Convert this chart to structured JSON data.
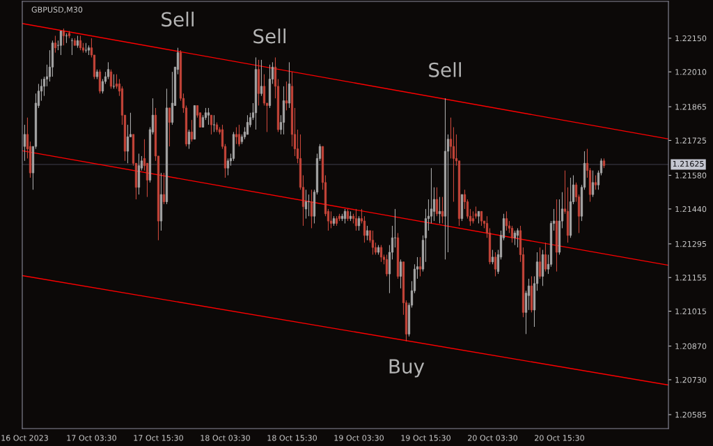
{
  "chart_data": {
    "type": "candlestick",
    "title": "GBPUSD,M30",
    "colors": [
      "#a8a8a8",
      "#c8463a",
      "#c8463a",
      "#a8a8a8",
      "#a8a8a8",
      "#a8a8a8",
      "#a8a8a8",
      "#a8a8a8",
      "#a8a8a8",
      "#a8a8a8",
      "#a8a8a8",
      "#c8463a",
      "#a8a8a8",
      "#a8a8a8",
      "#c8463a",
      "#a8a8a8",
      "#c8463a",
      "#a8a8a8",
      "#c8463a",
      "#a8a8a8",
      "#c8463a",
      "#c8463a",
      "#a8a8a8",
      "#a8a8a8",
      "#c8463a",
      "#c8463a",
      "#a8a8a8",
      "#c8463a",
      "#a8a8a8",
      "#a8a8a8",
      "#a8a8a8",
      "#c8463a",
      "#a8a8a8",
      "#c8463a",
      "#c8463a",
      "#c8463a",
      "#c8463a",
      "#a8a8a8",
      "#a8a8a8",
      "#c8463a",
      "#c8463a",
      "#a8a8a8",
      "#a8a8a8",
      "#c8463a",
      "#c8463a",
      "#a8a8a8",
      "#a8a8a8",
      "#c8463a",
      "#c8463a",
      "#a8a8a8",
      "#c8463a",
      "#a8a8a8",
      "#c8463a",
      "#a8a8a8",
      "#a8a8a8",
      "#a8a8a8",
      "#c8463a",
      "#c8463a",
      "#c8463a",
      "#a8a8a8",
      "#c8463a",
      "#a8a8a8",
      "#c8463a",
      "#c8463a",
      "#a8a8a8",
      "#a8a8a8",
      "#a8a8a8",
      "#c8463a",
      "#a8a8a8",
      "#c8463a",
      "#c8463a",
      "#c8463a",
      "#c8463a",
      "#a8a8a8",
      "#a8a8a8",
      "#a8a8a8",
      "#c8463a",
      "#c8463a",
      "#a8a8a8",
      "#a8a8a8",
      "#a8a8a8",
      "#a8a8a8",
      "#a8a8a8",
      "#a8a8a8",
      "#c8463a",
      "#a8a8a8",
      "#c8463a",
      "#c8463a",
      "#a8a8a8",
      "#a8a8a8",
      "#c8463a",
      "#c8463a",
      "#a8a8a8",
      "#a8a8a8",
      "#c8463a",
      "#a8a8a8",
      "#c8463a",
      "#c8463a",
      "#c8463a",
      "#c8463a",
      "#c8463a",
      "#a8a8a8",
      "#a8a8a8",
      "#c8463a",
      "#a8a8a8",
      "#a8a8a8",
      "#a8a8a8",
      "#c8463a",
      "#c8463a",
      "#c8463a",
      "#c8463a",
      "#a8a8a8",
      "#c8463a",
      "#c8463a",
      "#a8a8a8",
      "#a8a8a8",
      "#c8463a",
      "#a8a8a8",
      "#c8463a",
      "#c8463a",
      "#a8a8a8",
      "#c8463a",
      "#c8463a",
      "#a8a8a8",
      "#c8463a",
      "#c8463a",
      "#c8463a",
      "#a8a8a8",
      "#c8463a",
      "#c8463a",
      "#c8463a",
      "#a8a8a8",
      "#a8a8a8",
      "#a8a8a8",
      "#c8463a",
      "#a8a8a8",
      "#c8463a",
      "#c8463a",
      "#a8a8a8",
      "#a8a8a8",
      "#a8a8a8",
      "#a8a8a8",
      "#c8463a",
      "#a8a8a8",
      "#a8a8a8",
      "#a8a8a8",
      "#a8a8a8",
      "#a8a8a8",
      "#c8463a",
      "#a8a8a8",
      "#c8463a",
      "#a8a8a8",
      "#a8a8a8",
      "#c8463a",
      "#c8463a",
      "#c8463a",
      "#c8463a",
      "#a8a8a8",
      "#c8463a",
      "#c8463a",
      "#c8463a",
      "#c8463a",
      "#c8463a",
      "#a8a8a8",
      "#c8463a",
      "#c8463a",
      "#c8463a",
      "#c8463a",
      "#a8a8a8",
      "#c8463a",
      "#a8a8a8",
      "#a8a8a8",
      "#a8a8a8",
      "#c8463a",
      "#c8463a",
      "#c8463a",
      "#a8a8a8",
      "#a8a8a8",
      "#c8463a",
      "#c8463a",
      "#a8a8a8",
      "#a8a8a8",
      "#c8463a",
      "#a8a8a8",
      "#a8a8a8",
      "#c8463a",
      "#a8a8a8",
      "#c8463a",
      "#a8a8a8",
      "#a8a8a8",
      "#a8a8a8",
      "#c8463a",
      "#a8a8a8",
      "#a8a8a8",
      "#c8463a",
      "#c8463a",
      "#a8a8a8",
      "#a8a8a8",
      "#c8463a",
      "#c8463a",
      "#a8a8a8",
      "#a8a8a8",
      "#c8463a",
      "#c8463a",
      "#a8a8a8",
      "#c8463a",
      "#a8a8a8",
      "#a8a8a8",
      "#c8463a"
    ],
    "x": [
      "2023-10-16T15:30",
      "2023-10-16T16:00",
      "2023-10-16T16:30",
      "2023-10-16T17:00",
      "2023-10-16T17:30",
      "2023-10-16T18:00",
      "2023-10-16T18:30",
      "2023-10-16T19:00",
      "2023-10-16T19:30",
      "2023-10-16T20:00",
      "2023-10-16T20:30",
      "2023-10-16T21:00",
      "2023-10-16T21:30",
      "2023-10-16T22:00",
      "2023-10-16T22:30",
      "2023-10-16T23:00",
      "2023-10-16T23:30",
      "2023-10-17T00:00",
      "2023-10-17T00:30",
      "2023-10-17T01:00",
      "2023-10-17T01:30",
      "2023-10-17T02:00",
      "2023-10-17T02:30",
      "2023-10-17T03:00",
      "2023-10-17T03:30",
      "2023-10-17T04:00",
      "2023-10-17T04:30",
      "2023-10-17T05:00",
      "2023-10-17T05:30",
      "2023-10-17T06:00",
      "2023-10-17T06:30",
      "2023-10-17T07:00",
      "2023-10-17T07:30",
      "2023-10-17T08:00",
      "2023-10-17T08:30",
      "2023-10-17T09:00",
      "2023-10-17T09:30",
      "2023-10-17T10:00",
      "2023-10-17T10:30",
      "2023-10-17T11:00",
      "2023-10-17T11:30",
      "2023-10-17T12:00",
      "2023-10-17T12:30",
      "2023-10-17T13:00",
      "2023-10-17T13:30",
      "2023-10-17T14:00",
      "2023-10-17T14:30",
      "2023-10-17T15:00",
      "2023-10-17T15:30",
      "2023-10-17T16:00",
      "2023-10-17T16:30",
      "2023-10-17T17:00",
      "2023-10-17T17:30",
      "2023-10-17T18:00",
      "2023-10-17T18:30",
      "2023-10-17T19:00",
      "2023-10-17T19:30",
      "2023-10-17T20:00",
      "2023-10-17T20:30",
      "2023-10-17T21:00",
      "2023-10-17T21:30",
      "2023-10-17T22:00",
      "2023-10-17T22:30",
      "2023-10-17T23:00",
      "2023-10-17T23:30",
      "2023-10-18T00:00",
      "2023-10-18T00:30",
      "2023-10-18T01:00",
      "2023-10-18T01:30",
      "2023-10-18T02:00",
      "2023-10-18T02:30",
      "2023-10-18T03:00",
      "2023-10-18T03:30",
      "2023-10-18T04:00",
      "2023-10-18T04:30",
      "2023-10-18T05:00",
      "2023-10-18T05:30",
      "2023-10-18T06:00",
      "2023-10-18T06:30",
      "2023-10-18T07:00",
      "2023-10-18T07:30",
      "2023-10-18T08:00",
      "2023-10-18T08:30",
      "2023-10-18T09:00",
      "2023-10-18T09:30",
      "2023-10-18T10:00",
      "2023-10-18T10:30",
      "2023-10-18T11:00",
      "2023-10-18T11:30",
      "2023-10-18T12:00",
      "2023-10-18T12:30",
      "2023-10-18T13:00",
      "2023-10-18T13:30",
      "2023-10-18T14:00",
      "2023-10-18T14:30",
      "2023-10-18T15:00",
      "2023-10-18T15:30",
      "2023-10-18T16:00",
      "2023-10-18T16:30",
      "2023-10-18T17:00",
      "2023-10-18T17:30",
      "2023-10-18T18:00",
      "2023-10-18T18:30",
      "2023-10-18T19:00",
      "2023-10-18T19:30",
      "2023-10-18T20:00",
      "2023-10-18T20:30",
      "2023-10-18T21:00",
      "2023-10-18T21:30",
      "2023-10-18T22:00",
      "2023-10-18T22:30",
      "2023-10-18T23:00",
      "2023-10-18T23:30",
      "2023-10-19T00:00",
      "2023-10-19T00:30",
      "2023-10-19T01:00",
      "2023-10-19T01:30",
      "2023-10-19T02:00",
      "2023-10-19T02:30",
      "2023-10-19T03:00",
      "2023-10-19T03:30",
      "2023-10-19T04:00",
      "2023-10-19T04:30",
      "2023-10-19T05:00",
      "2023-10-19T05:30",
      "2023-10-19T06:00",
      "2023-10-19T06:30",
      "2023-10-19T07:00",
      "2023-10-19T07:30",
      "2023-10-19T08:00",
      "2023-10-19T08:30",
      "2023-10-19T09:00",
      "2023-10-19T09:30",
      "2023-10-19T10:00",
      "2023-10-19T10:30",
      "2023-10-19T11:00",
      "2023-10-19T11:30",
      "2023-10-19T12:00",
      "2023-10-19T12:30",
      "2023-10-19T13:00",
      "2023-10-19T13:30",
      "2023-10-19T14:00",
      "2023-10-19T14:30",
      "2023-10-19T15:00",
      "2023-10-19T15:30",
      "2023-10-19T16:00",
      "2023-10-19T16:30",
      "2023-10-19T17:00",
      "2023-10-19T17:30",
      "2023-10-19T18:00",
      "2023-10-19T18:30",
      "2023-10-19T19:00",
      "2023-10-19T19:30",
      "2023-10-19T20:00",
      "2023-10-19T20:30",
      "2023-10-19T21:00",
      "2023-10-19T21:30",
      "2023-10-19T22:00",
      "2023-10-19T22:30",
      "2023-10-19T23:00",
      "2023-10-19T23:30",
      "2023-10-20T00:00",
      "2023-10-20T00:30",
      "2023-10-20T01:00",
      "2023-10-20T01:30",
      "2023-10-20T02:00",
      "2023-10-20T02:30",
      "2023-10-20T03:00",
      "2023-10-20T03:30",
      "2023-10-20T04:00",
      "2023-10-20T04:30",
      "2023-10-20T05:00",
      "2023-10-20T05:30",
      "2023-10-20T06:00",
      "2023-10-20T06:30",
      "2023-10-20T07:00",
      "2023-10-20T07:30",
      "2023-10-20T08:00",
      "2023-10-20T08:30",
      "2023-10-20T09:00",
      "2023-10-20T09:30",
      "2023-10-20T10:00",
      "2023-10-20T10:30",
      "2023-10-20T11:00",
      "2023-10-20T11:30",
      "2023-10-20T12:00",
      "2023-10-20T12:30",
      "2023-10-20T13:00",
      "2023-10-20T13:30",
      "2023-10-20T14:00",
      "2023-10-20T14:30",
      "2023-10-20T15:00",
      "2023-10-20T15:30",
      "2023-10-20T16:00",
      "2023-10-20T16:30",
      "2023-10-20T17:00",
      "2023-10-20T17:30",
      "2023-10-20T18:00",
      "2023-10-20T18:30",
      "2023-10-20T19:00",
      "2023-10-20T19:30",
      "2023-10-20T20:00",
      "2023-10-20T20:30",
      "2023-10-20T21:00",
      "2023-10-20T21:30",
      "2023-10-20T22:00",
      "2023-10-20T22:30",
      "2023-10-20T23:00",
      "2023-10-20T23:30"
    ],
    "ohlc": [
      [
        1.217,
        1.2179,
        1.2164,
        1.2175
      ],
      [
        1.2175,
        1.2182,
        1.2165,
        1.2169
      ],
      [
        1.217,
        1.2172,
        1.2157,
        1.2159
      ],
      [
        1.2159,
        1.217,
        1.2152,
        1.217
      ],
      [
        1.217,
        1.2192,
        1.2169,
        1.2188
      ],
      [
        1.2187,
        1.2196,
        1.2186,
        1.2193
      ],
      [
        1.2193,
        1.2198,
        1.2189,
        1.2195
      ],
      [
        1.2195,
        1.2199,
        1.2191,
        1.2198
      ],
      [
        1.2198,
        1.2204,
        1.2195,
        1.2199
      ],
      [
        1.2199,
        1.221,
        1.2197,
        1.2203
      ],
      [
        1.2203,
        1.2214,
        1.2199,
        1.2213
      ],
      [
        1.2213,
        1.2216,
        1.2209,
        1.2211
      ],
      [
        1.2212,
        1.2214,
        1.221,
        1.2212
      ],
      [
        1.2212,
        1.2218,
        1.2208,
        1.2218
      ],
      [
        1.2218,
        1.2219,
        1.2212,
        1.2216
      ],
      [
        1.2216,
        1.2217,
        1.2213,
        1.2216
      ],
      [
        1.2217,
        1.2218,
        1.2215,
        1.2216
      ],
      [
        1.2214,
        1.2215,
        1.2208,
        1.2214
      ],
      [
        1.2214,
        1.2215,
        1.2212,
        1.2212
      ],
      [
        1.2212,
        1.2216,
        1.2211,
        1.2214
      ],
      [
        1.2214,
        1.2216,
        1.221,
        1.2211
      ],
      [
        1.2211,
        1.2213,
        1.2209,
        1.221
      ],
      [
        1.221,
        1.2213,
        1.2209,
        1.221
      ],
      [
        1.221,
        1.2212,
        1.2208,
        1.2211
      ],
      [
        1.2211,
        1.2215,
        1.2207,
        1.2208
      ],
      [
        1.2208,
        1.2208,
        1.2198,
        1.2199
      ],
      [
        1.2199,
        1.2202,
        1.2198,
        1.2201
      ],
      [
        1.2201,
        1.2202,
        1.2192,
        1.2193
      ],
      [
        1.2193,
        1.2198,
        1.2192,
        1.2197
      ],
      [
        1.2197,
        1.2201,
        1.2196,
        1.2199
      ],
      [
        1.2199,
        1.2205,
        1.2198,
        1.2202
      ],
      [
        1.2201,
        1.2202,
        1.2194,
        1.2195
      ],
      [
        1.2195,
        1.22,
        1.2194,
        1.2195
      ],
      [
        1.2196,
        1.22,
        1.2194,
        1.2195
      ],
      [
        1.2196,
        1.2198,
        1.2191,
        1.2193
      ],
      [
        1.2194,
        1.2195,
        1.2179,
        1.2183
      ],
      [
        1.2183,
        1.2183,
        1.2164,
        1.2168
      ],
      [
        1.2168,
        1.2179,
        1.2163,
        1.2174
      ],
      [
        1.2174,
        1.2184,
        1.2174,
        1.2175
      ],
      [
        1.2175,
        1.2175,
        1.2162,
        1.2163
      ],
      [
        1.2163,
        1.2163,
        1.2148,
        1.2153
      ],
      [
        1.2153,
        1.2167,
        1.215,
        1.2162
      ],
      [
        1.2161,
        1.2166,
        1.216,
        1.2164
      ],
      [
        1.2165,
        1.2173,
        1.216,
        1.2162
      ],
      [
        1.2163,
        1.2163,
        1.2149,
        1.2156
      ],
      [
        1.2156,
        1.2178,
        1.2155,
        1.2177
      ],
      [
        1.2176,
        1.219,
        1.2175,
        1.2183
      ],
      [
        1.2183,
        1.2186,
        1.2164,
        1.2166
      ],
      [
        1.2166,
        1.2166,
        1.2131,
        1.2139
      ],
      [
        1.2139,
        1.2159,
        1.2135,
        1.215
      ],
      [
        1.215,
        1.2159,
        1.2146,
        1.2147
      ],
      [
        1.2147,
        1.2194,
        1.2146,
        1.2186
      ],
      [
        1.2186,
        1.2186,
        1.217,
        1.218
      ],
      [
        1.218,
        1.2201,
        1.2179,
        1.2188
      ],
      [
        1.2187,
        1.2203,
        1.2187,
        1.2203
      ],
      [
        1.2202,
        1.2211,
        1.22,
        1.2209
      ],
      [
        1.2209,
        1.221,
        1.2189,
        1.219
      ],
      [
        1.219,
        1.2192,
        1.2184,
        1.2186
      ],
      [
        1.2186,
        1.2187,
        1.217,
        1.2171
      ],
      [
        1.2171,
        1.2177,
        1.2169,
        1.2176
      ],
      [
        1.2176,
        1.2181,
        1.2172,
        1.2173
      ],
      [
        1.2173,
        1.2187,
        1.2173,
        1.2187
      ],
      [
        1.2187,
        1.2187,
        1.2182,
        1.2183
      ],
      [
        1.2184,
        1.2184,
        1.2178,
        1.2178
      ],
      [
        1.2178,
        1.2183,
        1.2178,
        1.2182
      ],
      [
        1.2182,
        1.2186,
        1.2181,
        1.2184
      ],
      [
        1.2183,
        1.2186,
        1.2179,
        1.2184
      ],
      [
        1.2183,
        1.2183,
        1.2175,
        1.2179
      ],
      [
        1.2179,
        1.2183,
        1.2176,
        1.2179
      ],
      [
        1.2179,
        1.218,
        1.2176,
        1.2177
      ],
      [
        1.2177,
        1.2178,
        1.2175,
        1.2176
      ],
      [
        1.2177,
        1.2179,
        1.2169,
        1.217
      ],
      [
        1.217,
        1.2171,
        1.2157,
        1.2161
      ],
      [
        1.2161,
        1.2165,
        1.2158,
        1.2164
      ],
      [
        1.2164,
        1.2167,
        1.2162,
        1.2165
      ],
      [
        1.2165,
        1.2176,
        1.2164,
        1.2175
      ],
      [
        1.2175,
        1.2178,
        1.2171,
        1.2174
      ],
      [
        1.2175,
        1.2179,
        1.217,
        1.2171
      ],
      [
        1.2172,
        1.2175,
        1.2171,
        1.2174
      ],
      [
        1.2174,
        1.2178,
        1.2173,
        1.2176
      ],
      [
        1.2175,
        1.2183,
        1.2175,
        1.218
      ],
      [
        1.2179,
        1.2184,
        1.2178,
        1.2182
      ],
      [
        1.2182,
        1.2188,
        1.2181,
        1.2184
      ],
      [
        1.2184,
        1.2207,
        1.2177,
        1.2202
      ],
      [
        1.2202,
        1.2206,
        1.2187,
        1.2192
      ],
      [
        1.2192,
        1.2206,
        1.2191,
        1.2195
      ],
      [
        1.2195,
        1.22,
        1.2187,
        1.2188
      ],
      [
        1.2188,
        1.2188,
        1.2176,
        1.2187
      ],
      [
        1.2187,
        1.2204,
        1.2186,
        1.2198
      ],
      [
        1.2198,
        1.2205,
        1.2196,
        1.2203
      ],
      [
        1.2203,
        1.2207,
        1.219,
        1.2195
      ],
      [
        1.2195,
        1.2198,
        1.2176,
        1.2177
      ],
      [
        1.2177,
        1.2183,
        1.2175,
        1.218
      ],
      [
        1.218,
        1.2195,
        1.2175,
        1.2189
      ],
      [
        1.2189,
        1.2197,
        1.2185,
        1.2188
      ],
      [
        1.2188,
        1.2205,
        1.2186,
        1.2196
      ],
      [
        1.2195,
        1.2201,
        1.217,
        1.2175
      ],
      [
        1.2175,
        1.2186,
        1.2166,
        1.2169
      ],
      [
        1.2169,
        1.2177,
        1.2163,
        1.2165
      ],
      [
        1.2165,
        1.2175,
        1.2152,
        1.2153
      ],
      [
        1.2153,
        1.2158,
        1.2137,
        1.2145
      ],
      [
        1.2144,
        1.2152,
        1.214,
        1.2147
      ],
      [
        1.2147,
        1.215,
        1.2141,
        1.2147
      ],
      [
        1.2147,
        1.2152,
        1.2136,
        1.2141
      ],
      [
        1.2141,
        1.2152,
        1.2138,
        1.2151
      ],
      [
        1.2151,
        1.2167,
        1.215,
        1.2165
      ],
      [
        1.2165,
        1.2171,
        1.2164,
        1.217
      ],
      [
        1.217,
        1.217,
        1.2152,
        1.2155
      ],
      [
        1.2155,
        1.2158,
        1.2141,
        1.2142
      ],
      [
        1.2143,
        1.2144,
        1.2135,
        1.2139
      ],
      [
        1.2139,
        1.2143,
        1.2136,
        1.2138
      ],
      [
        1.2138,
        1.2141,
        1.2137,
        1.214
      ],
      [
        1.214,
        1.2141,
        1.2137,
        1.2138
      ],
      [
        1.2141,
        1.2142,
        1.2139,
        1.214
      ],
      [
        1.214,
        1.2142,
        1.2139,
        1.2141
      ],
      [
        1.214,
        1.2144,
        1.2138,
        1.2143
      ],
      [
        1.2143,
        1.2144,
        1.2139,
        1.214
      ],
      [
        1.214,
        1.2143,
        1.2139,
        1.2141
      ],
      [
        1.2141,
        1.2142,
        1.2138,
        1.214
      ],
      [
        1.214,
        1.2144,
        1.2135,
        1.2137
      ],
      [
        1.2137,
        1.2141,
        1.2135,
        1.214
      ],
      [
        1.214,
        1.2144,
        1.2138,
        1.2139
      ],
      [
        1.2139,
        1.2141,
        1.213,
        1.2133
      ],
      [
        1.2133,
        1.2137,
        1.2131,
        1.2135
      ],
      [
        1.2135,
        1.2135,
        1.213,
        1.2131
      ],
      [
        1.2131,
        1.2135,
        1.2125,
        1.2128
      ],
      [
        1.2128,
        1.213,
        1.2125,
        1.2126
      ],
      [
        1.2126,
        1.2129,
        1.2125,
        1.2128
      ],
      [
        1.2128,
        1.2129,
        1.2122,
        1.2124
      ],
      [
        1.2124,
        1.2125,
        1.2121,
        1.2123
      ],
      [
        1.2123,
        1.2125,
        1.2116,
        1.2117
      ],
      [
        1.2117,
        1.2129,
        1.2109,
        1.2126
      ],
      [
        1.2126,
        1.2137,
        1.2123,
        1.2132
      ],
      [
        1.2132,
        1.2144,
        1.2128,
        1.2132
      ],
      [
        1.2132,
        1.2134,
        1.2115,
        1.2116
      ],
      [
        1.2116,
        1.2123,
        1.2111,
        1.2122
      ],
      [
        1.2122,
        1.2122,
        1.21,
        1.2105
      ],
      [
        1.2105,
        1.2106,
        1.2089,
        1.2092
      ],
      [
        1.2092,
        1.2105,
        1.2091,
        1.2104
      ],
      [
        1.2104,
        1.2114,
        1.2103,
        1.211
      ],
      [
        1.211,
        1.2121,
        1.2109,
        1.2119
      ],
      [
        1.2119,
        1.2124,
        1.2115,
        1.212
      ],
      [
        1.212,
        1.2124,
        1.2116,
        1.2119
      ],
      [
        1.2119,
        1.2133,
        1.2118,
        1.2131
      ],
      [
        1.2132,
        1.2144,
        1.2122,
        1.214
      ],
      [
        1.214,
        1.2148,
        1.2135,
        1.2141
      ],
      [
        1.2141,
        1.2161,
        1.2138,
        1.2144
      ],
      [
        1.2143,
        1.2153,
        1.2139,
        1.2148
      ],
      [
        1.2148,
        1.2153,
        1.2141,
        1.2142
      ],
      [
        1.2142,
        1.2149,
        1.2138,
        1.2143
      ],
      [
        1.2143,
        1.2149,
        1.2138,
        1.2141
      ],
      [
        1.2141,
        1.219,
        1.2123,
        1.2168
      ],
      [
        1.2168,
        1.2175,
        1.2126,
        1.2173
      ],
      [
        1.2173,
        1.2182,
        1.2165,
        1.217
      ],
      [
        1.217,
        1.2178,
        1.2147,
        1.2165
      ],
      [
        1.2165,
        1.2175,
        1.2162,
        1.2164
      ],
      [
        1.2164,
        1.2164,
        1.2137,
        1.214
      ],
      [
        1.214,
        1.215,
        1.2139,
        1.215
      ],
      [
        1.215,
        1.2152,
        1.2144,
        1.2147
      ],
      [
        1.2147,
        1.2148,
        1.214,
        1.2141
      ],
      [
        1.2141,
        1.2144,
        1.2137,
        1.2139
      ],
      [
        1.214,
        1.2143,
        1.2138,
        1.2139
      ],
      [
        1.2142,
        1.2145,
        1.214,
        1.2141
      ],
      [
        1.2141,
        1.2143,
        1.2138,
        1.2143
      ],
      [
        1.2143,
        1.2143,
        1.2137,
        1.2139
      ],
      [
        1.2139,
        1.2139,
        1.2136,
        1.2138
      ],
      [
        1.2138,
        1.2141,
        1.2132,
        1.2134
      ],
      [
        1.2134,
        1.2136,
        1.2121,
        1.2122
      ],
      [
        1.2122,
        1.2127,
        1.2121,
        1.2124
      ],
      [
        1.2124,
        1.2126,
        1.2116,
        1.2119
      ],
      [
        1.2118,
        1.2127,
        1.2117,
        1.2125
      ],
      [
        1.2124,
        1.2135,
        1.2123,
        1.2133
      ],
      [
        1.2132,
        1.2142,
        1.2131,
        1.214
      ],
      [
        1.214,
        1.2143,
        1.2135,
        1.2137
      ],
      [
        1.2137,
        1.2139,
        1.2134,
        1.2136
      ],
      [
        1.2136,
        1.2137,
        1.213,
        1.2132
      ],
      [
        1.2132,
        1.2135,
        1.2129,
        1.2134
      ],
      [
        1.2133,
        1.2136,
        1.2128,
        1.2135
      ],
      [
        1.2135,
        1.2137,
        1.2122,
        1.2125
      ],
      [
        1.2125,
        1.2128,
        1.2099,
        1.2101
      ],
      [
        1.2101,
        1.211,
        1.2092,
        1.2109
      ],
      [
        1.2108,
        1.2115,
        1.2102,
        1.2112
      ],
      [
        1.2112,
        1.2116,
        1.2101,
        1.2102
      ],
      [
        1.2102,
        1.2116,
        1.2095,
        1.2113
      ],
      [
        1.2113,
        1.2126,
        1.211,
        1.2122
      ],
      [
        1.2122,
        1.2128,
        1.2115,
        1.2116
      ],
      [
        1.2116,
        1.2127,
        1.2112,
        1.2125
      ],
      [
        1.2125,
        1.213,
        1.2118,
        1.2119
      ],
      [
        1.2119,
        1.2125,
        1.2117,
        1.2121
      ],
      [
        1.2121,
        1.2139,
        1.212,
        1.2138
      ],
      [
        1.2138,
        1.2144,
        1.2135,
        1.2139
      ],
      [
        1.2139,
        1.2148,
        1.2118,
        1.2126
      ],
      [
        1.2126,
        1.2148,
        1.2125,
        1.2139
      ],
      [
        1.2139,
        1.2151,
        1.2136,
        1.2144
      ],
      [
        1.2144,
        1.216,
        1.2142,
        1.2143
      ],
      [
        1.2143,
        1.2153,
        1.213,
        1.2133
      ],
      [
        1.2133,
        1.2157,
        1.2132,
        1.2147
      ],
      [
        1.2147,
        1.2158,
        1.2146,
        1.2154
      ],
      [
        1.2154,
        1.2155,
        1.2147,
        1.2149
      ],
      [
        1.2149,
        1.215,
        1.2134,
        1.2141
      ],
      [
        1.2141,
        1.2154,
        1.2139,
        1.2153
      ],
      [
        1.2153,
        1.2168,
        1.2152,
        1.2163
      ],
      [
        1.2163,
        1.2169,
        1.2157,
        1.216
      ],
      [
        1.216,
        1.2161,
        1.2147,
        1.215
      ],
      [
        1.215,
        1.216,
        1.2149,
        1.2155
      ],
      [
        1.2155,
        1.2158,
        1.2152,
        1.2154
      ],
      [
        1.2154,
        1.216,
        1.2152,
        1.2159
      ],
      [
        1.2159,
        1.2165,
        1.2158,
        1.2164
      ],
      [
        1.2164,
        1.2165,
        1.2161,
        1.2162
      ]
    ],
    "series": [
      {
        "type": "line",
        "x": [
          "2023-10-16T15:04",
          "2023-10-21T11:04"
        ],
        "values": [
          1.22211,
          1.21731
        ],
        "color": "#ff0000"
      },
      {
        "type": "line",
        "x": [
          "2023-10-16T15:04",
          "2023-10-21T11:04"
        ],
        "values": [
          1.21682,
          1.21206
        ],
        "color": "#ff0000"
      },
      {
        "type": "line",
        "x": [
          "2023-10-16T15:04",
          "2023-10-21T11:04"
        ],
        "values": [
          1.21163,
          1.20708
        ],
        "color": "#ff0000"
      }
    ],
    "ref_lines": [
      {
        "axis": "y",
        "value": 1.21625,
        "label": "1.21625",
        "color": "#3e3e4c"
      }
    ],
    "annotations": [
      {
        "text": "Sell",
        "x": "2023-10-17T19:00",
        "y": 1.2211
      },
      {
        "text": "Sell",
        "x": "2023-10-18T11:30",
        "y": 1.2204
      },
      {
        "text": "Sell",
        "x": "2023-10-19T19:00",
        "y": 1.219
      },
      {
        "text": "Buy",
        "x": "2023-10-19T12:00",
        "y": 1.2089
      }
    ],
    "xlim": [
      "2023-10-16T15:04",
      "2023-10-21T11:04"
    ],
    "xticks": [
      {
        "value": "2023-10-16T15:30",
        "label": "16 Oct 2023"
      },
      {
        "value": "2023-10-17T03:30",
        "label": "17 Oct 03:30"
      },
      {
        "value": "2023-10-17T15:30",
        "label": "17 Oct 15:30"
      },
      {
        "value": "2023-10-18T03:30",
        "label": "18 Oct 03:30"
      },
      {
        "value": "2023-10-18T15:30",
        "label": "18 Oct 15:30"
      },
      {
        "value": "2023-10-19T03:30",
        "label": "19 Oct 03:30"
      },
      {
        "value": "2023-10-19T15:30",
        "label": "19 Oct 15:30"
      },
      {
        "value": "2023-10-20T03:30",
        "label": "20 Oct 03:30"
      },
      {
        "value": "2023-10-20T15:30",
        "label": "20 Oct 15:30"
      }
    ],
    "ylim": [
      1.20527,
      1.22303
    ],
    "yticks": [
      {
        "value": 1.2215,
        "label": "1.22150"
      },
      {
        "value": 1.2201,
        "label": "1.22010"
      },
      1.21865,
      1.21725,
      {
        "value": 1.2158,
        "label": "1.21580"
      },
      {
        "value": 1.2144,
        "label": "1.21440"
      },
      1.21295,
      1.21155,
      1.21015,
      {
        "value": 1.2087,
        "label": "1.20870"
      },
      {
        "value": 1.2073,
        "label": "1.20730"
      },
      1.20585
    ]
  }
}
